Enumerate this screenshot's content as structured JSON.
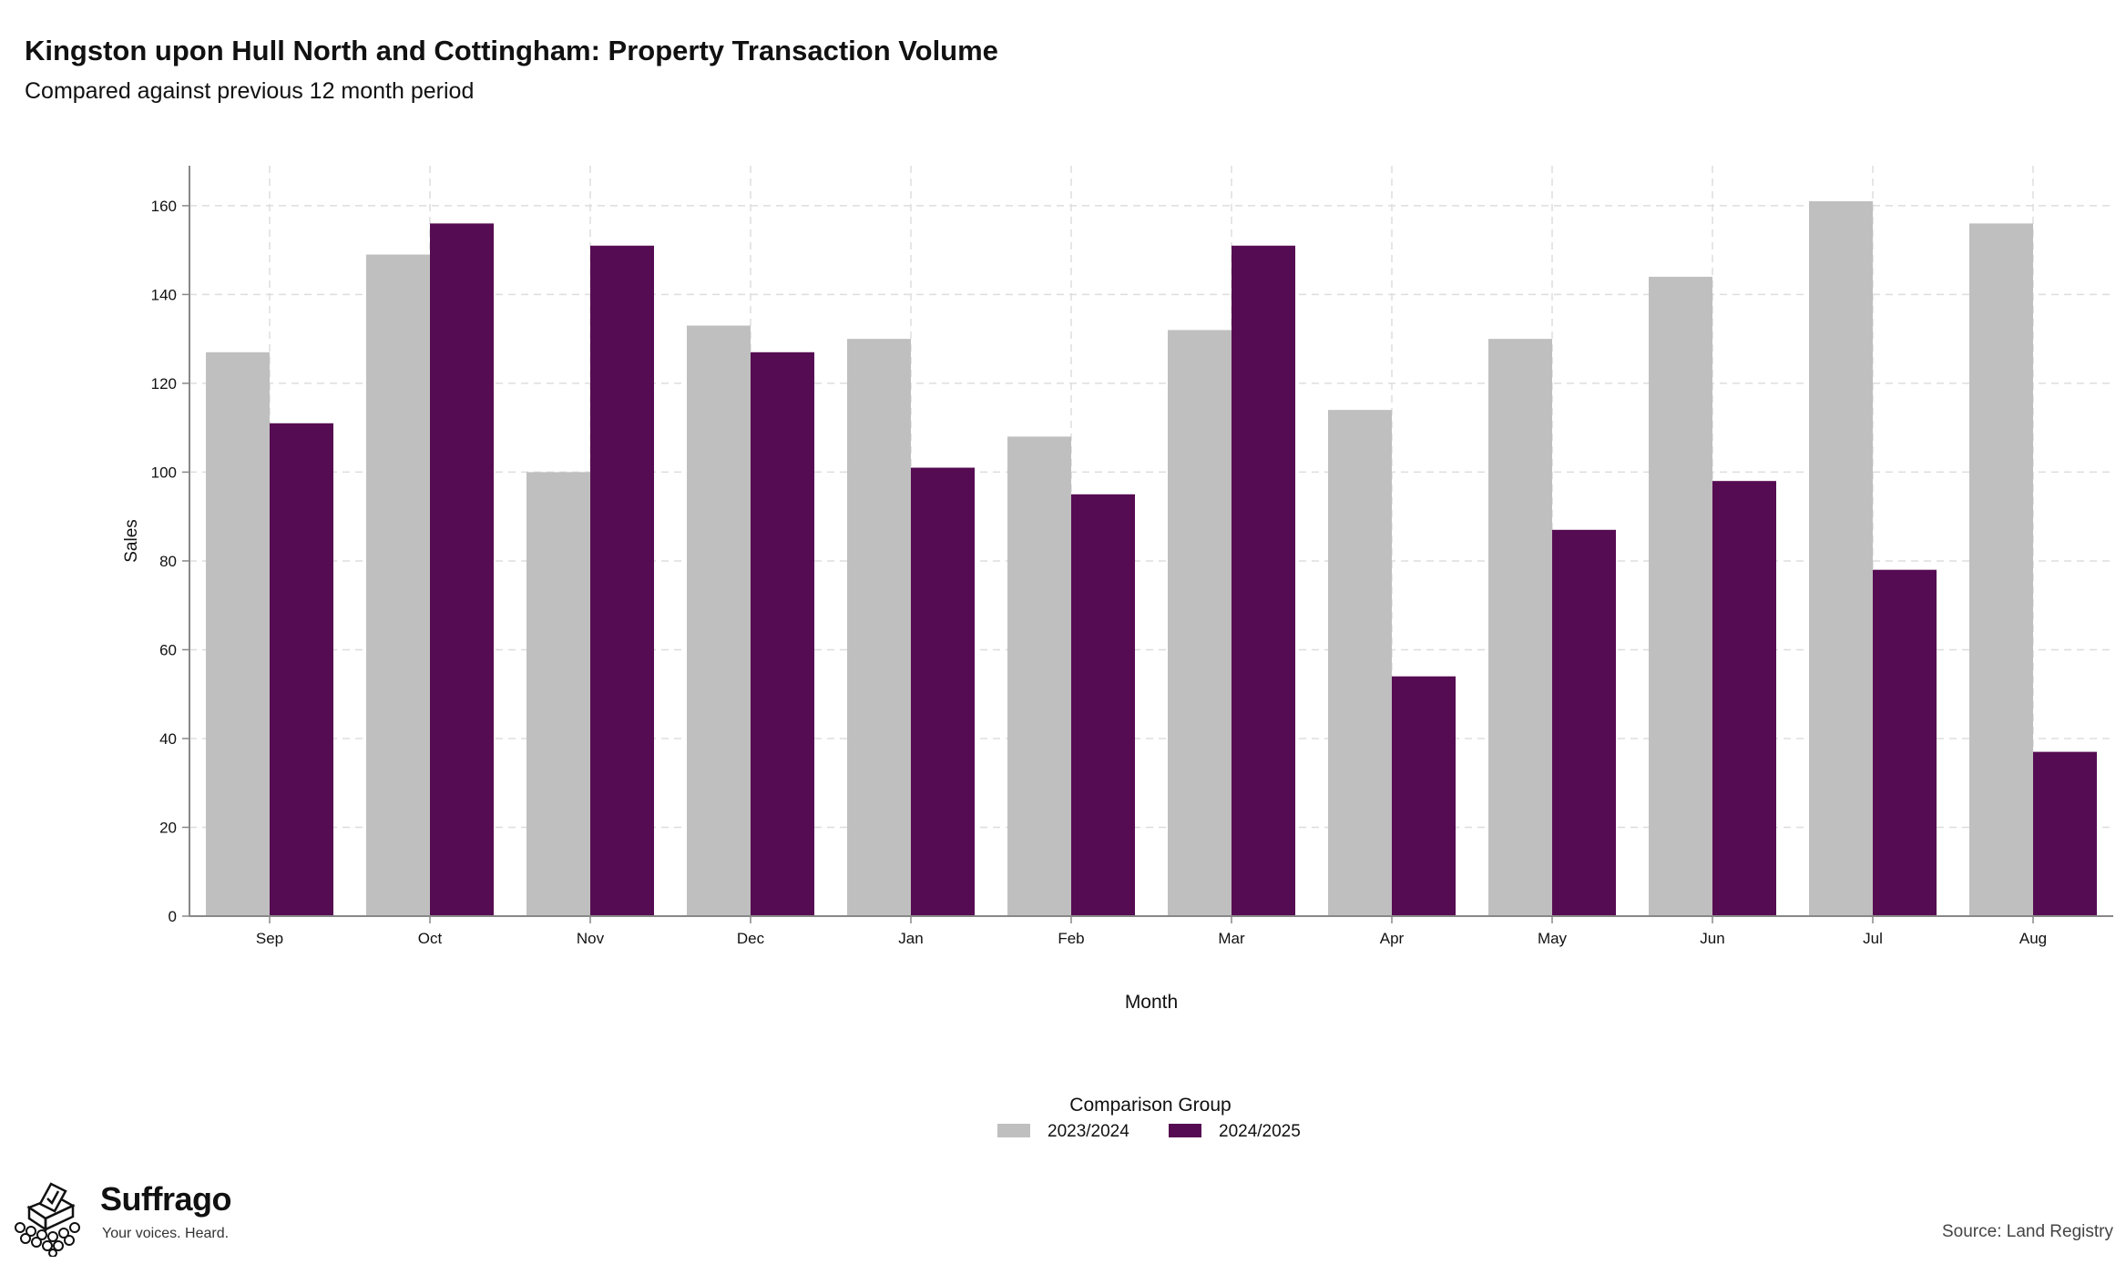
{
  "header": {
    "title": "Kingston upon Hull North and Cottingham: Property Transaction Volume",
    "subtitle": "Compared against previous 12 month period"
  },
  "footer": {
    "brand_name": "Suffrago",
    "brand_tagline": "Your voices. Heard.",
    "source": "Source: Land Registry"
  },
  "colors": {
    "series_2023_2024": "#bfbfbf",
    "series_2024_2025": "#560c52",
    "grid": "#dddddd",
    "axis": "#888888"
  },
  "chart_data": {
    "type": "bar",
    "categories": [
      "Sep",
      "Oct",
      "Nov",
      "Dec",
      "Jan",
      "Feb",
      "Mar",
      "Apr",
      "May",
      "Jun",
      "Jul",
      "Aug"
    ],
    "series": [
      {
        "name": "2023/2024",
        "values": [
          127,
          149,
          100,
          133,
          130,
          108,
          132,
          114,
          130,
          144,
          161,
          156
        ]
      },
      {
        "name": "2024/2025",
        "values": [
          111,
          156,
          151,
          127,
          101,
          95,
          151,
          54,
          87,
          98,
          78,
          37
        ]
      }
    ],
    "xlabel": "Month",
    "ylabel": "Sales",
    "ylim": [
      0,
      169
    ],
    "yticks": [
      0,
      20,
      40,
      60,
      80,
      100,
      120,
      140,
      160
    ],
    "legend_title": "Comparison Group",
    "legend_position": "bottom",
    "grid": true
  }
}
